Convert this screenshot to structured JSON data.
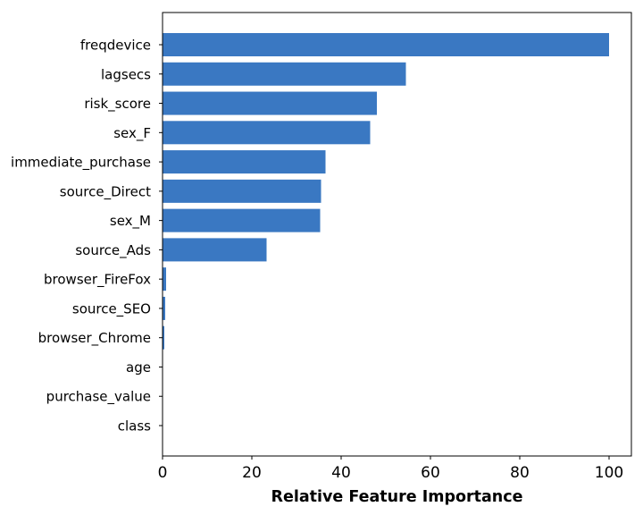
{
  "chart_data": {
    "type": "bar",
    "orientation": "horizontal",
    "categories": [
      "freqdevice",
      "lagsecs",
      "risk_score",
      "sex_F",
      "immediate_purchase",
      "source_Direct",
      "sex_M",
      "source_Ads",
      "browser_FireFox",
      "source_SEO",
      "browser_Chrome",
      "age",
      "purchase_value",
      "class"
    ],
    "values": [
      100,
      54.5,
      48,
      46.5,
      36.5,
      35.5,
      35.3,
      23.3,
      0.8,
      0.6,
      0.4,
      0.1,
      0.05,
      0
    ],
    "title": "",
    "xlabel": "Relative Feature Importance",
    "ylabel": "",
    "xlim": [
      0,
      105
    ],
    "xticks": [
      "0",
      "20",
      "40",
      "60",
      "80",
      "100"
    ],
    "bar_color": "#3a78c2",
    "grid": false
  }
}
